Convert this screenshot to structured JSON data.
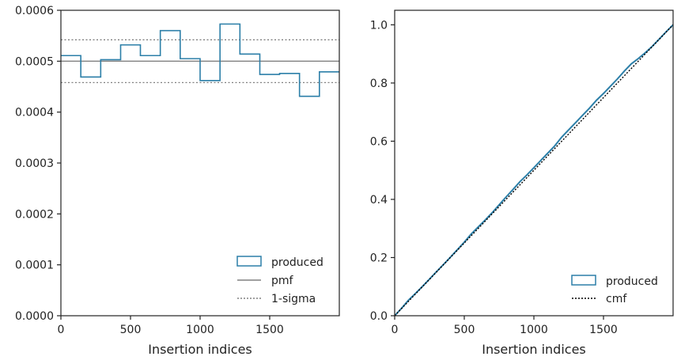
{
  "colors": {
    "produced": "#2c7fa8",
    "pmf": "#808080",
    "sigma": "#808080",
    "cmf": "#000000",
    "axis": "#222222"
  },
  "chart_data": [
    {
      "type": "step",
      "xlabel": "Insertion indices",
      "ylabel": "",
      "xlim": [
        0,
        2000
      ],
      "ylim": [
        0,
        0.0006
      ],
      "xticks": [
        {
          "value": 0,
          "label": "0"
        },
        {
          "value": 500,
          "label": "500"
        },
        {
          "value": 1000,
          "label": "1000"
        },
        {
          "value": 1500,
          "label": "1500"
        }
      ],
      "yticks": [
        {
          "value": 0,
          "label": "0.0000"
        },
        {
          "value": 0.0001,
          "label": "0.0001"
        },
        {
          "value": 0.0002,
          "label": "0.0002"
        },
        {
          "value": 0.0003,
          "label": "0.0003"
        },
        {
          "value": 0.0004,
          "label": "0.0004"
        },
        {
          "value": 0.0005,
          "label": "0.0005"
        },
        {
          "value": 0.0006,
          "label": "0.0006"
        }
      ],
      "bin_edges": [
        0,
        143,
        286,
        429,
        571,
        714,
        857,
        1000,
        1143,
        1286,
        1429,
        1571,
        1714,
        1857,
        2000
      ],
      "values": [
        0.000511,
        0.000469,
        0.000503,
        0.000532,
        0.000511,
        0.00056,
        0.000505,
        0.000462,
        0.000573,
        0.000514,
        0.000474,
        0.000476,
        0.000431,
        0.000479
      ],
      "pmf": 0.0005,
      "sigma": [
        0.000458,
        0.000542
      ],
      "legend_position": "lower-right",
      "legend": [
        {
          "label": "produced",
          "kind": "box"
        },
        {
          "label": "pmf",
          "kind": "solid"
        },
        {
          "label": "1-sigma",
          "kind": "dotted"
        }
      ]
    },
    {
      "type": "line",
      "xlabel": "Insertion indices",
      "ylabel": "",
      "xlim": [
        0,
        2000
      ],
      "ylim": [
        0,
        1.05
      ],
      "xticks": [
        {
          "value": 0,
          "label": "0"
        },
        {
          "value": 500,
          "label": "500"
        },
        {
          "value": 1000,
          "label": "1000"
        },
        {
          "value": 1500,
          "label": "1500"
        }
      ],
      "yticks": [
        {
          "value": 0,
          "label": "0.0"
        },
        {
          "value": 0.2,
          "label": "0.2"
        },
        {
          "value": 0.4,
          "label": "0.4"
        },
        {
          "value": 0.6,
          "label": "0.6"
        },
        {
          "value": 0.8,
          "label": "0.8"
        },
        {
          "value": 1.0,
          "label": "1.0"
        }
      ],
      "produced_x": [
        0,
        50,
        100,
        150,
        200,
        250,
        300,
        350,
        400,
        450,
        500,
        550,
        600,
        650,
        700,
        750,
        800,
        850,
        900,
        950,
        1000,
        1050,
        1100,
        1150,
        1200,
        1250,
        1300,
        1350,
        1400,
        1450,
        1500,
        1550,
        1600,
        1650,
        1700,
        1750,
        1800,
        1850,
        1900,
        1950,
        2000
      ],
      "produced_y": [
        0,
        0.026,
        0.054,
        0.077,
        0.101,
        0.126,
        0.151,
        0.176,
        0.201,
        0.227,
        0.253,
        0.281,
        0.305,
        0.329,
        0.354,
        0.381,
        0.408,
        0.434,
        0.461,
        0.484,
        0.509,
        0.534,
        0.559,
        0.584,
        0.614,
        0.639,
        0.664,
        0.689,
        0.714,
        0.741,
        0.764,
        0.789,
        0.814,
        0.841,
        0.866,
        0.884,
        0.904,
        0.926,
        0.951,
        0.976,
        1.0
      ],
      "cmf_x": [
        0,
        2000
      ],
      "cmf_y": [
        0,
        1.0
      ],
      "legend_position": "lower-right",
      "legend": [
        {
          "label": "produced",
          "kind": "box"
        },
        {
          "label": "cmf",
          "kind": "dotted"
        }
      ]
    }
  ]
}
